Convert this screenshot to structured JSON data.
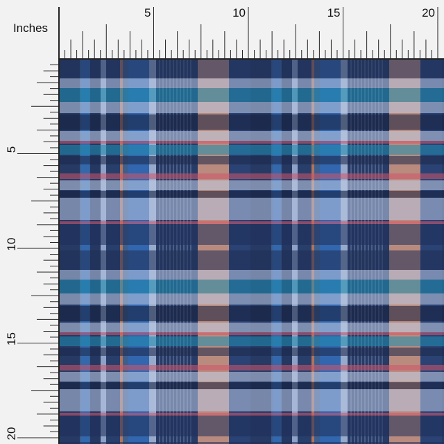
{
  "ruler": {
    "unit_label": "Inches",
    "top_labels": [
      5,
      10,
      15,
      20
    ],
    "left_labels": [
      5,
      10,
      15,
      20
    ]
  }
}
